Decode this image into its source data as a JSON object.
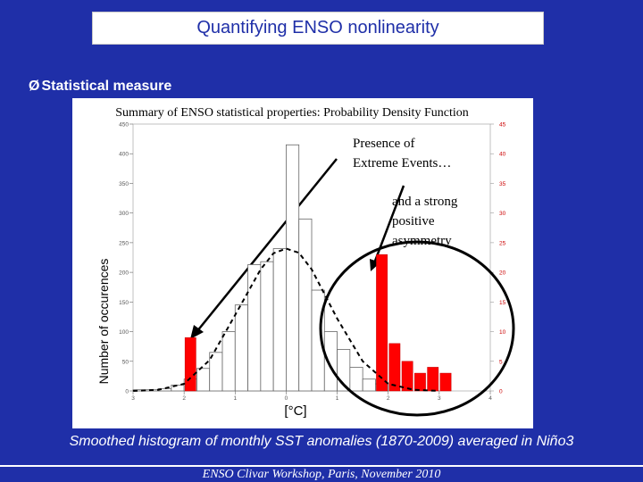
{
  "slide": {
    "title": "Quantifying ENSO nonlinearity",
    "bullet_marker": "Ø",
    "bullet_text": "Statistical measure",
    "caption": "Smoothed histogram of monthly SST anomalies (1870-2009) averaged in Niño3",
    "footer": "ENSO Clivar Workshop, Paris, November 2010"
  },
  "chart_data": {
    "type": "bar",
    "title": "Summary of ENSO statistical properties: Probability Density Function",
    "ylabel": "Number of occurences",
    "xlabel": "[°C]",
    "xlim": [
      -3,
      4
    ],
    "ylim": [
      0,
      450
    ],
    "xticks": [
      -3,
      -2,
      -1,
      0,
      1,
      2,
      3,
      4
    ],
    "xtick_labels": [
      "3",
      "2",
      "1",
      "0",
      "1",
      "2",
      "3",
      "4"
    ],
    "yticks": [
      0,
      50,
      100,
      150,
      200,
      250,
      300,
      350,
      400,
      450
    ],
    "right_ylim": [
      0,
      45
    ],
    "right_yticks": [
      0,
      5,
      10,
      15,
      20,
      25,
      30,
      35,
      40,
      45
    ],
    "bin_width": 0.25,
    "series": [
      {
        "values": [
          {
            "x": -3.0,
            "y": 2
          },
          {
            "x": -2.75,
            "y": 2
          },
          {
            "x": -2.5,
            "y": 4
          },
          {
            "x": -2.25,
            "y": 10
          },
          {
            "x": -2.0,
            "y": 20
          },
          {
            "x": -1.75,
            "y": 38
          },
          {
            "x": -1.5,
            "y": 65
          },
          {
            "x": -1.25,
            "y": 100
          },
          {
            "x": -1.0,
            "y": 145
          },
          {
            "x": -0.75,
            "y": 213
          },
          {
            "x": -0.5,
            "y": 218
          },
          {
            "x": -0.25,
            "y": 240
          },
          {
            "x": 0.0,
            "y": 415
          },
          {
            "x": 0.25,
            "y": 290
          },
          {
            "x": 0.5,
            "y": 170
          },
          {
            "x": 0.75,
            "y": 100
          },
          {
            "x": 1.0,
            "y": 70
          },
          {
            "x": 1.25,
            "y": 40
          },
          {
            "x": 1.5,
            "y": 20
          },
          {
            "x": 1.75,
            "y": 12
          }
        ],
        "color": "#ffffff"
      },
      {
        "values": [
          {
            "x": -2.0,
            "y": 9
          },
          {
            "x": 1.75,
            "y": 23
          },
          {
            "x": 2.0,
            "y": 8
          },
          {
            "x": 2.25,
            "y": 5
          },
          {
            "x": 2.5,
            "y": 3
          },
          {
            "x": 2.75,
            "y": 4
          },
          {
            "x": 3.0,
            "y": 3
          }
        ],
        "axis": "right",
        "color": "#ff0000"
      },
      {
        "type": "line",
        "style": "dashed",
        "color": "#000000",
        "x": [
          -3.0,
          -2.5,
          -2.0,
          -1.5,
          -1.0,
          -0.5,
          -0.25,
          0.0,
          0.25,
          0.5,
          1.0,
          1.5,
          2.0,
          2.5,
          3.0
        ],
        "values": [
          0,
          2,
          12,
          52,
          128,
          205,
          232,
          240,
          233,
          205,
          122,
          50,
          12,
          2,
          0
        ]
      }
    ],
    "annotations": [
      {
        "text": "Presence of Extreme Events…"
      },
      {
        "text": "and a strong positive asymmetry"
      }
    ],
    "colors": {
      "negative_tail": "#ff0000",
      "positive_tail": "#ff0000"
    }
  }
}
